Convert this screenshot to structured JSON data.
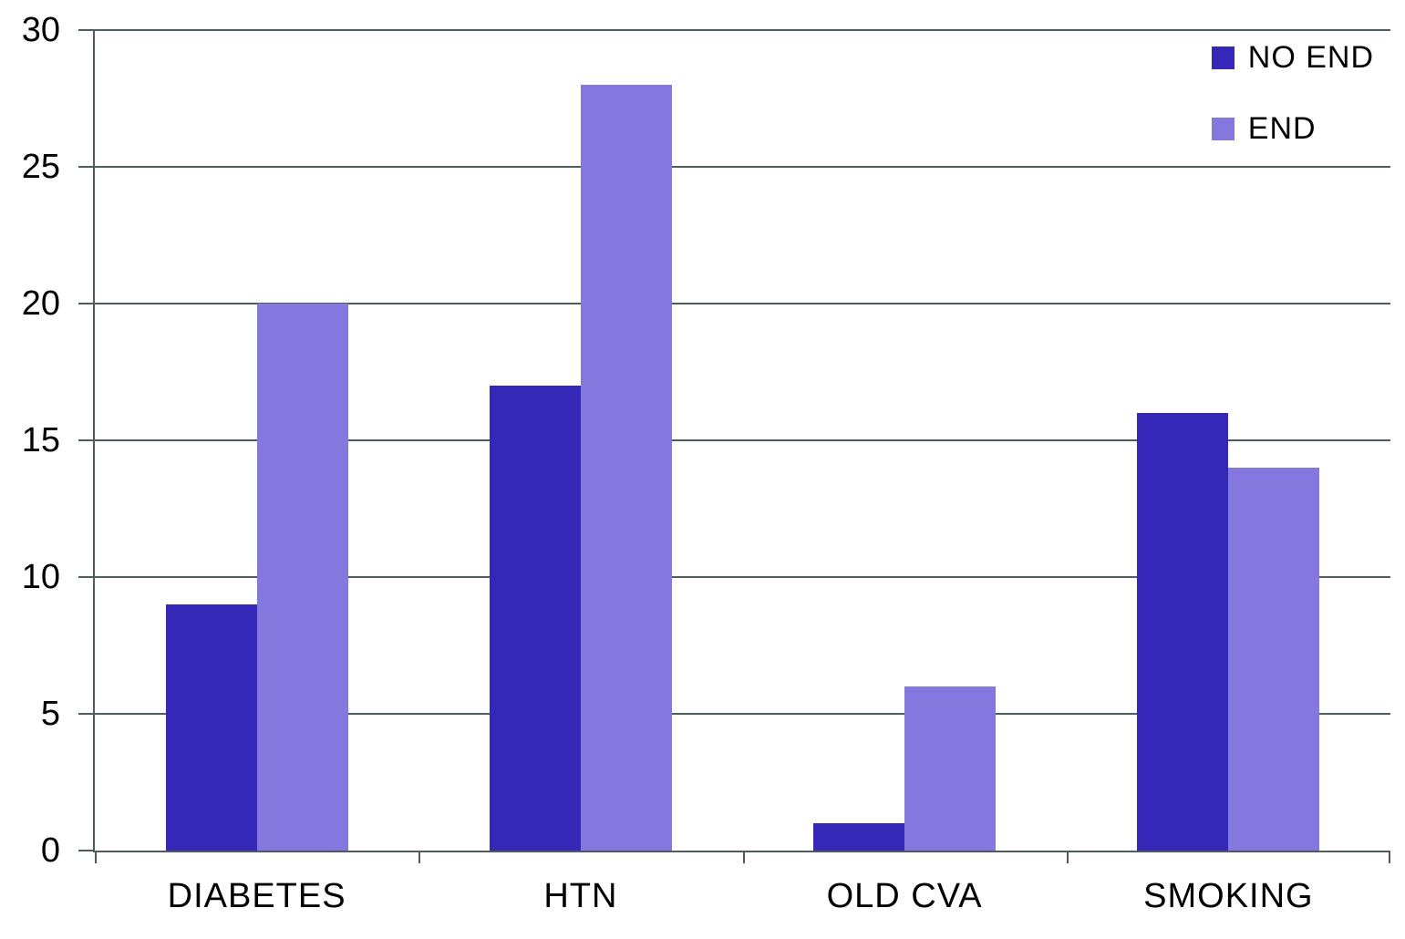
{
  "chart_data": {
    "type": "bar",
    "title": "",
    "xlabel": "",
    "ylabel": "",
    "categories": [
      "DIABETES",
      "HTN",
      "OLD CVA",
      "SMOKING"
    ],
    "series": [
      {
        "name": "NO END",
        "color": "#3528B8",
        "values": [
          9,
          17,
          1,
          16
        ]
      },
      {
        "name": "END",
        "color": "#8478DE",
        "values": [
          20,
          28,
          6,
          14
        ]
      }
    ],
    "ylim": [
      0,
      30
    ],
    "yticks": [
      0,
      5,
      10,
      15,
      20,
      25,
      30
    ],
    "grid": true,
    "legend_position": "top-right",
    "colors": {
      "axis": "#4E5B5F",
      "text": "#000000",
      "background": "#FFFFFF"
    }
  }
}
